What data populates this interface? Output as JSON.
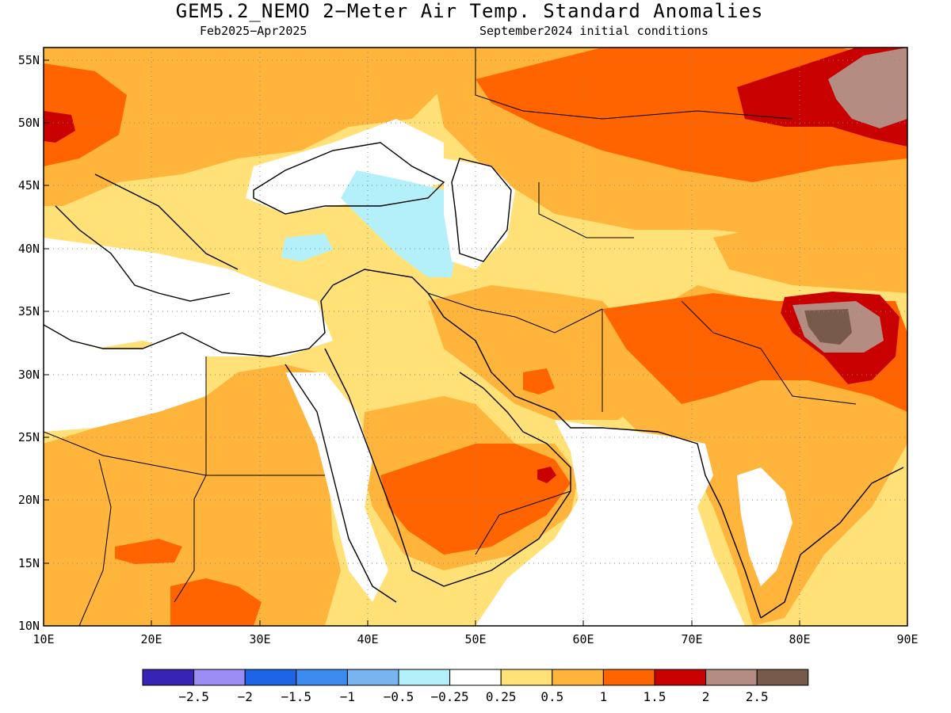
{
  "title": "GEM5.2_NEMO 2−Meter Air Temp. Standard Anomalies",
  "subtitle_left": "Feb2025−Apr2025",
  "subtitle_right": "September2024 initial conditions",
  "map": {
    "lon_range": [
      10,
      90
    ],
    "lat_range": [
      10,
      56
    ],
    "grid": "dotted",
    "lat_labels": [
      "55N",
      "50N",
      "45N",
      "40N",
      "35N",
      "30N",
      "25N",
      "20N",
      "15N",
      "10N"
    ],
    "lat_values": [
      55,
      50,
      45,
      40,
      35,
      30,
      25,
      20,
      15,
      10
    ],
    "lon_labels": [
      "10E",
      "20E",
      "30E",
      "40E",
      "50E",
      "60E",
      "70E",
      "80E",
      "90E"
    ],
    "lon_values": [
      10,
      20,
      30,
      40,
      50,
      60,
      70,
      80,
      90
    ]
  },
  "colorbar": {
    "colors": [
      "#3723b4",
      "#9c8cf6",
      "#1e64e6",
      "#3c8cf0",
      "#78b4f0",
      "#b4f0fa",
      "#ffffff",
      "#ffe178",
      "#ffb43c",
      "#ff6400",
      "#c80000",
      "#b48c82",
      "#785a4b"
    ],
    "labels": [
      "−2.5",
      "−2",
      "−1.5",
      "−1",
      "−0.5",
      "−0.25",
      "0.25",
      "0.5",
      "1",
      "1.5",
      "2",
      "2.5"
    ]
  }
}
